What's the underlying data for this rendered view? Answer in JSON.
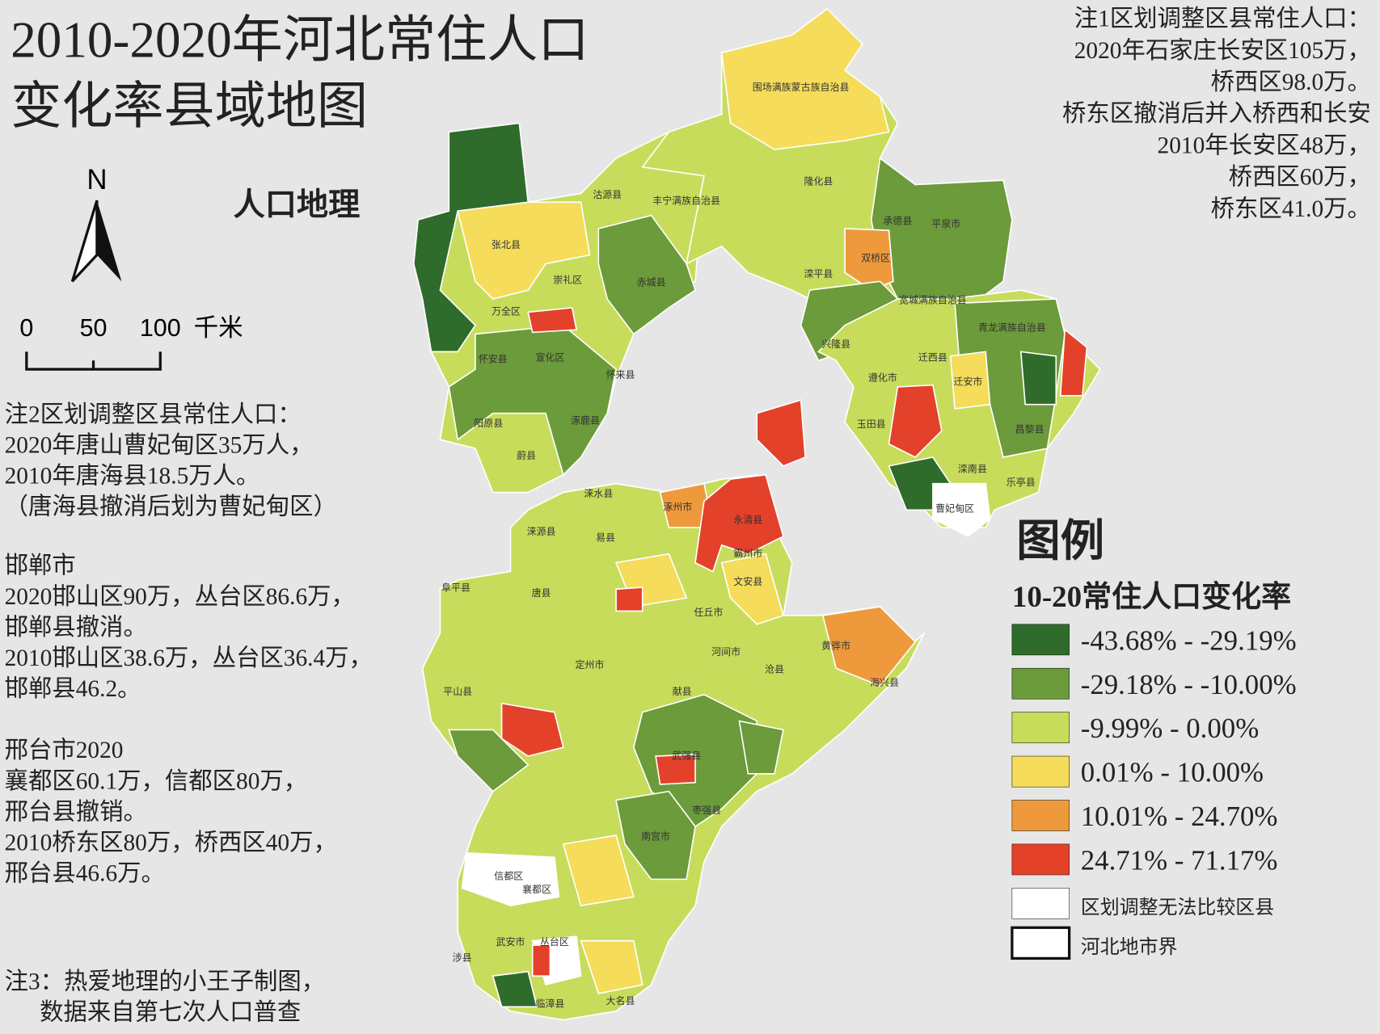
{
  "header": {
    "title_lines": [
      "2010-2020年河北常住人口",
      "变化率县域地图"
    ],
    "watermark": "人口地理"
  },
  "compass": {
    "north": "N"
  },
  "scale_bar": {
    "labels": [
      "0",
      "50",
      "100"
    ],
    "unit": "千米"
  },
  "note1": [
    "注1区划调整区县常住人口：",
    "2020年石家庄长安区105万，",
    "桥西区98.0万。",
    "桥东区撤消后并入桥西和长安",
    "2010年长安区48万，",
    "桥西区60万，",
    "桥东区41.0万。"
  ],
  "note2": [
    "注2区划调整区县常住人口：",
    "2020年唐山曹妃甸区35万人，",
    "2010年唐海县18.5万人。",
    "（唐海县撤消后划为曹妃甸区）"
  ],
  "handan": [
    "邯郸市",
    "2020邯山区90万，丛台区86.6万，",
    "邯郸县撤消。",
    "2010邯山区38.6万，丛台区36.4万，",
    "邯郸县46.2。"
  ],
  "xingtai": [
    "邢台市2020",
    "襄都区60.1万，信都区80万，",
    "邢台县撤销。",
    "2010桥东区80万，桥西区40万，",
    "邢台县46.6万。"
  ],
  "note3": [
    "注3：热爱地理的小王子制图，",
    "数据来自第七次人口普查"
  ],
  "legend": {
    "title": "图例",
    "subtitle": "10-20常住人口变化率",
    "items": [
      {
        "label": "-43.68% - -29.19%",
        "color": "#2f6b2b"
      },
      {
        "label": "-29.18% - -10.00%",
        "color": "#6b9b3a"
      },
      {
        "label": "-9.99% - 0.00%",
        "color": "#c8dc5c"
      },
      {
        "label": "0.01% - 10.00%",
        "color": "#f5dc5a"
      },
      {
        "label": "10.01% - 24.70%",
        "color": "#ee9a3c"
      },
      {
        "label": "24.71% - 71.17%",
        "color": "#e4412b"
      },
      {
        "label": "区划调整无法比较区县",
        "color": "#ffffff"
      },
      {
        "label": "河北地市界",
        "color": "#ffffff"
      }
    ]
  },
  "map_labels": [
    "围场满族蒙古族自治县",
    "沽源县",
    "丰宁满族自治县",
    "隆化县",
    "承德县",
    "平泉市",
    "张北县",
    "崇礼区",
    "赤城县",
    "滦平县",
    "双桥区",
    "兴隆县",
    "宽城满族自治县",
    "青龙满族自治县",
    "万全区",
    "宣化区",
    "怀安县",
    "怀来县",
    "涿鹿县",
    "阳原县",
    "蔚县",
    "迁西县",
    "遵化市",
    "迁安市",
    "玉田县",
    "昌黎县",
    "滦南县",
    "乐亭县",
    "曹妃甸区",
    "涞水县",
    "涞源县",
    "易县",
    "涿州市",
    "永清县",
    "霸州市",
    "文安县",
    "唐县",
    "阜平县",
    "平山县",
    "定州市",
    "任丘市",
    "黄骅市",
    "海兴县",
    "河间市",
    "沧县",
    "献县",
    "武强县",
    "枣强县",
    "南宫市",
    "信都区",
    "襄都区",
    "武安市",
    "涉县",
    "丛台区",
    "大名县",
    "临漳县"
  ]
}
